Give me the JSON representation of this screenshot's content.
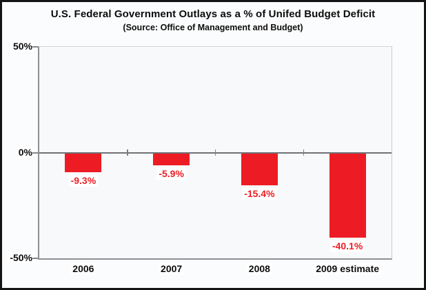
{
  "chart_data": {
    "type": "bar",
    "title": "U.S. Federal Government Outlays as a % of Unifed Budget Deficit",
    "subtitle": "(Source: Office of Management and Budget)",
    "categories": [
      "2006",
      "2007",
      "2008",
      "2009 estimate"
    ],
    "values": [
      -9.3,
      -5.9,
      -15.4,
      -40.1
    ],
    "value_labels": [
      "-9.3%",
      "-5.9%",
      "-15.4%",
      "-40.1%"
    ],
    "xlabel": "",
    "ylabel": "",
    "ylim": [
      -50,
      50
    ],
    "yticks": [
      {
        "value": 50,
        "label": "50%"
      },
      {
        "value": 0,
        "label": "0%"
      },
      {
        "value": -50,
        "label": "-50%"
      }
    ],
    "grid": false,
    "legend": false,
    "bar_color": "#ed1c24",
    "value_label_color": "#ed1c24",
    "axis_color": "#8b9095",
    "zero_line_color": "#6e7276"
  }
}
